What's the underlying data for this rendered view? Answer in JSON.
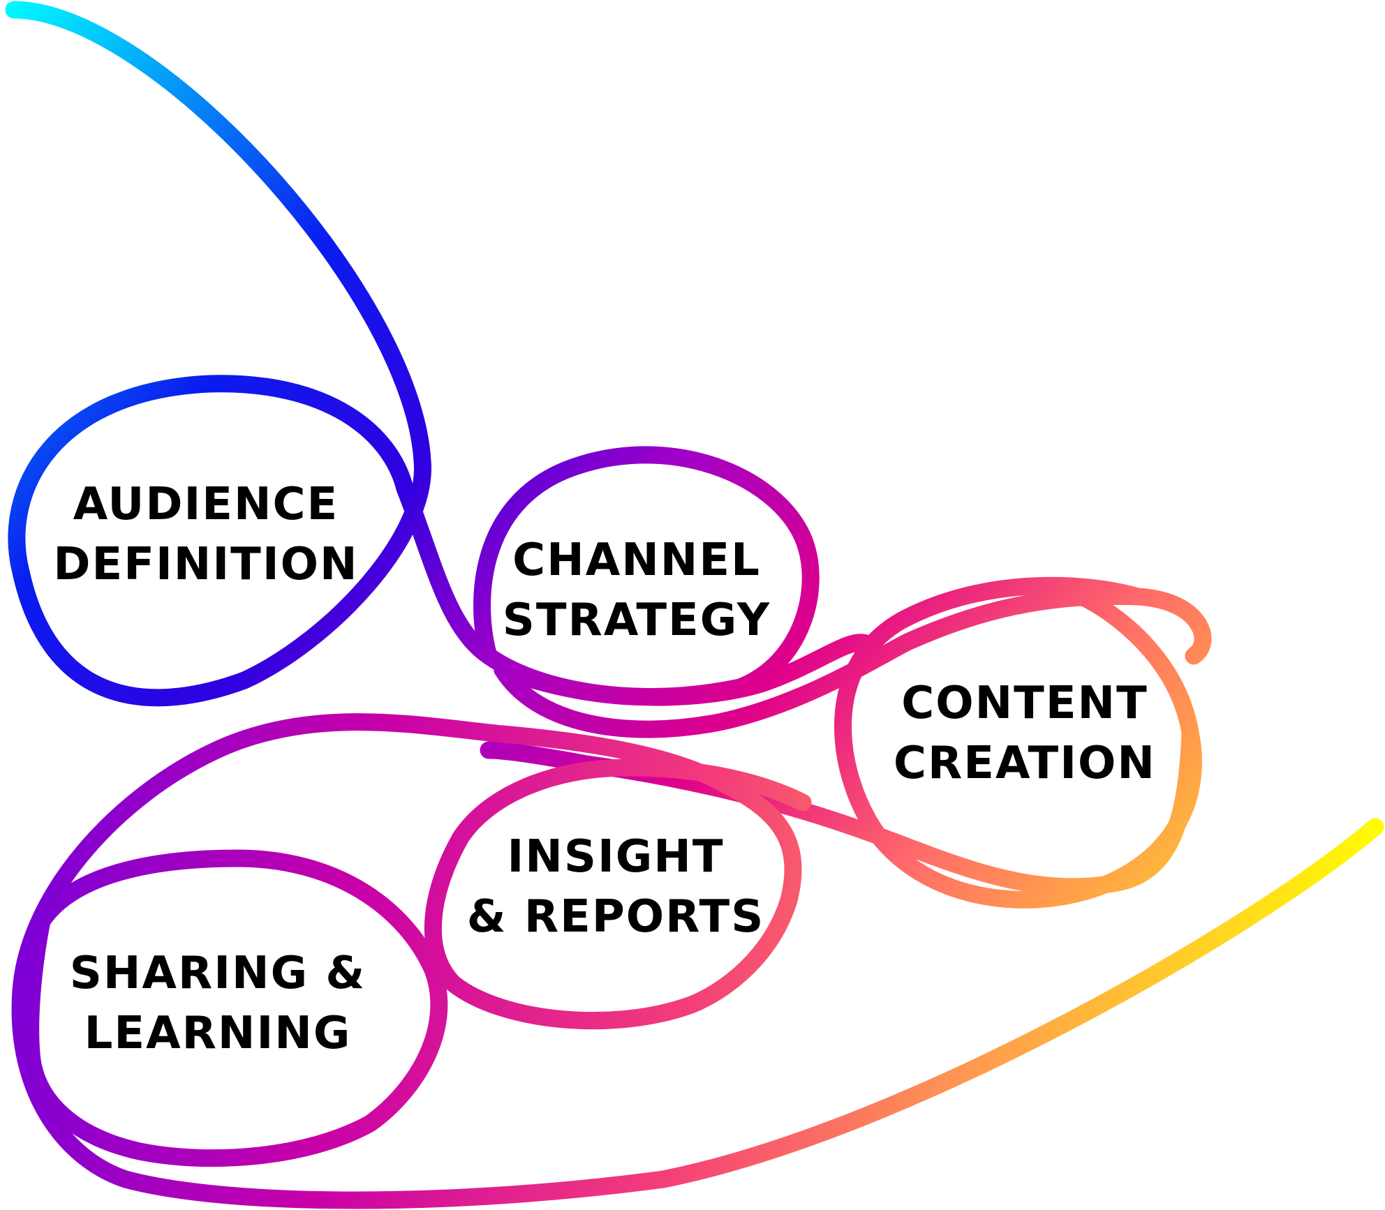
{
  "nodes": [
    {
      "id": "audience-definition",
      "lines": [
        "AUDIENCE",
        "DEFINITION"
      ]
    },
    {
      "id": "channel-strategy",
      "lines": [
        "CHANNEL",
        "STRATEGY"
      ]
    },
    {
      "id": "content-creation",
      "lines": [
        "CONTENT",
        "CREATION"
      ]
    },
    {
      "id": "insight-reports",
      "lines": [
        "INSIGHT",
        "& REPORTS"
      ]
    },
    {
      "id": "sharing-learning",
      "lines": [
        "SHARING &",
        "LEARNING"
      ]
    }
  ],
  "colors": {
    "gradient_upper": [
      "#00ffff",
      "#0a1cf0",
      "#3000e0",
      "#a000c8",
      "#e0008a",
      "#ff6a6a",
      "#ffb040",
      "#ffff00"
    ],
    "gradient_lower": [
      "#7a00d8",
      "#c800a8",
      "#f43c7a",
      "#ff9a50",
      "#ffff00"
    ],
    "text": "#000000"
  }
}
